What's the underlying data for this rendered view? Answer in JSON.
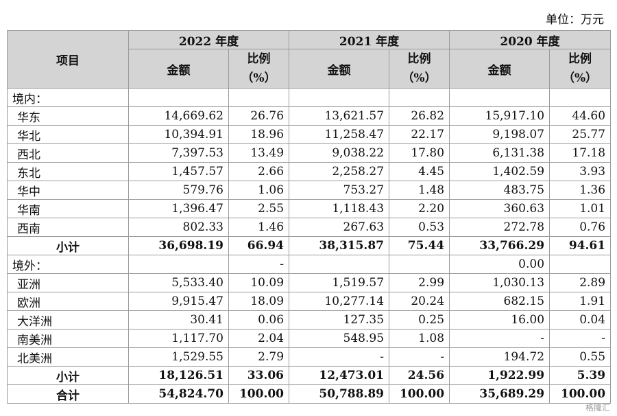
{
  "unit_label": "单位：万元",
  "headers": {
    "item": "项目",
    "years": [
      "2022 年度",
      "2021 年度",
      "2020 年度"
    ],
    "amount": "金额",
    "ratio_line1": "比例",
    "ratio_line2": "（%）"
  },
  "domestic": {
    "label": "境内：",
    "rows": [
      {
        "name": "华东",
        "v": [
          "14,669.62",
          "26.76",
          "13,621.57",
          "26.82",
          "15,917.10",
          "44.60"
        ]
      },
      {
        "name": "华北",
        "v": [
          "10,394.91",
          "18.96",
          "11,258.47",
          "22.17",
          "9,198.07",
          "25.77"
        ]
      },
      {
        "name": "西北",
        "v": [
          "7,397.53",
          "13.49",
          "9,038.22",
          "17.80",
          "6,131.38",
          "17.18"
        ]
      },
      {
        "name": "东北",
        "v": [
          "1,457.57",
          "2.66",
          "2,258.27",
          "4.45",
          "1,402.59",
          "3.93"
        ]
      },
      {
        "name": "华中",
        "v": [
          "579.76",
          "1.06",
          "753.27",
          "1.48",
          "483.75",
          "1.36"
        ]
      },
      {
        "name": "华南",
        "v": [
          "1,396.47",
          "2.55",
          "1,118.43",
          "2.20",
          "360.63",
          "1.01"
        ]
      },
      {
        "name": "西南",
        "v": [
          "802.33",
          "1.46",
          "267.63",
          "0.53",
          "272.78",
          "0.76"
        ]
      }
    ],
    "subtotal": {
      "name": "小计",
      "v": [
        "36,698.19",
        "66.94",
        "38,315.87",
        "75.44",
        "33,766.29",
        "94.61"
      ]
    }
  },
  "overseas": {
    "label": "境外：",
    "label_values": [
      "",
      "-",
      "",
      "",
      "0.00",
      ""
    ],
    "rows": [
      {
        "name": "亚洲",
        "v": [
          "5,533.40",
          "10.09",
          "1,519.57",
          "2.99",
          "1,030.13",
          "2.89"
        ]
      },
      {
        "name": "欧洲",
        "v": [
          "9,915.47",
          "18.09",
          "10,277.14",
          "20.24",
          "682.15",
          "1.91"
        ]
      },
      {
        "name": "大洋洲",
        "v": [
          "30.41",
          "0.06",
          "127.35",
          "0.25",
          "16.00",
          "0.04"
        ]
      },
      {
        "name": "南美洲",
        "v": [
          "1,117.70",
          "2.04",
          "548.95",
          "1.08",
          "-",
          "-"
        ]
      },
      {
        "name": "北美洲",
        "v": [
          "1,529.55",
          "2.79",
          "-",
          "-",
          "194.72",
          "0.55"
        ]
      }
    ],
    "subtotal": {
      "name": "小计",
      "v": [
        "18,126.51",
        "33.06",
        "12,473.01",
        "24.56",
        "1,922.99",
        "5.39"
      ]
    }
  },
  "total": {
    "name": "合计",
    "v": [
      "54,824.70",
      "100.00",
      "50,788.89",
      "100.00",
      "35,689.29",
      "100.00"
    ]
  },
  "watermark": "格隆汇"
}
